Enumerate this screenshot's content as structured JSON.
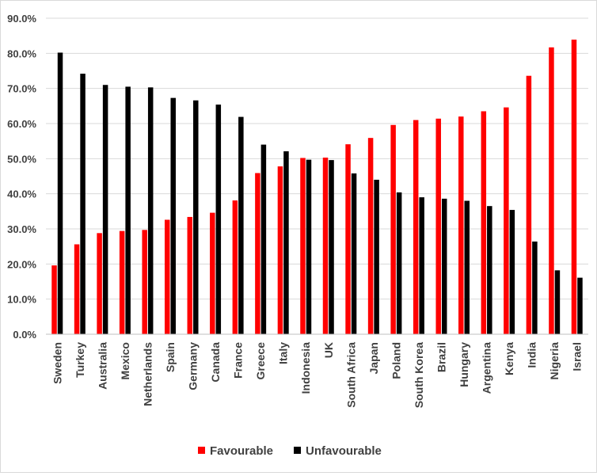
{
  "chart_data": {
    "type": "bar",
    "title": "",
    "xlabel": "",
    "ylabel": "",
    "ylim": [
      0,
      90
    ],
    "y_ticks": [
      "0.0%",
      "10.0%",
      "20.0%",
      "30.0%",
      "40.0%",
      "50.0%",
      "60.0%",
      "70.0%",
      "80.0%",
      "90.0%"
    ],
    "grid": true,
    "legend_position": "bottom",
    "categories": [
      "Sweden",
      "Turkey",
      "Australia",
      "Mexico",
      "Netherlands",
      "Spain",
      "Germany",
      "Canada",
      "France",
      "Greece",
      "Italy",
      "Indonesia",
      "UK",
      "South Africa",
      "Japan",
      "Poland",
      "South Korea",
      "Brazil",
      "Hungary",
      "Argentina",
      "Kenya",
      "India",
      "Nigeria",
      "Israel"
    ],
    "series": [
      {
        "name": "Favourable",
        "color": "#ff0000",
        "values": [
          19.6,
          25.6,
          28.8,
          29.4,
          29.7,
          32.6,
          33.4,
          34.6,
          38.1,
          45.9,
          47.8,
          50.2,
          50.3,
          54.1,
          55.9,
          59.6,
          61.0,
          61.4,
          62.0,
          63.5,
          64.6,
          73.6,
          81.7,
          83.9
        ]
      },
      {
        "name": "Unfavourable",
        "color": "#000000",
        "values": [
          80.2,
          74.2,
          71.0,
          70.5,
          70.3,
          67.3,
          66.6,
          65.4,
          61.9,
          54.0,
          52.1,
          49.7,
          49.6,
          45.8,
          44.0,
          40.4,
          39.0,
          38.6,
          38.0,
          36.5,
          35.4,
          26.4,
          18.2,
          16.1
        ]
      }
    ]
  }
}
